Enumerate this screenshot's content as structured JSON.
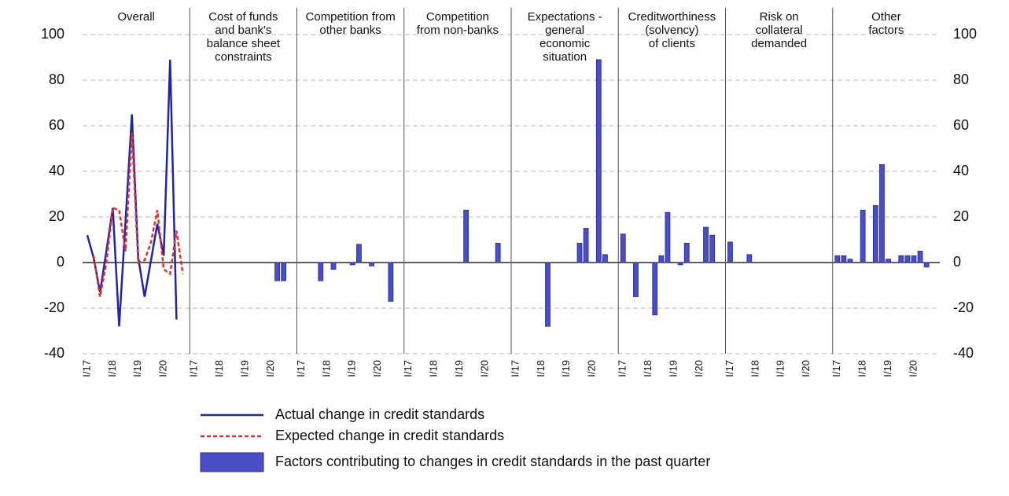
{
  "chart_data": {
    "type": "panels",
    "ylim": [
      -40,
      100
    ],
    "yticks": [
      -40,
      -20,
      0,
      20,
      40,
      60,
      80,
      100
    ],
    "grid": true,
    "categories": [
      "I/17",
      null,
      null,
      null,
      "I/18",
      null,
      null,
      null,
      "I/19",
      null,
      null,
      null,
      "I/20",
      null,
      null,
      null
    ],
    "bar_series": {
      "name": "Factors contributing to changes in credit standards in the past quarter",
      "color": "#4a4ec4"
    },
    "panels": [
      {
        "type": "line",
        "title": "Overall",
        "series": [
          {
            "name": "Actual change in credit standards",
            "color": "#2323a8",
            "values": [
              12,
              2,
              -13,
              5,
              24,
              -28,
              18,
              65,
              2,
              -15,
              1,
              17,
              3,
              89,
              -25,
              null
            ]
          },
          {
            "name": "Expected change in credit standards",
            "color": "#e0302a",
            "dash": true,
            "values": [
              null,
              3,
              -15,
              0,
              24,
              23,
              5,
              57,
              0,
              1,
              9,
              23,
              -3,
              -5,
              14,
              -5
            ]
          }
        ]
      },
      {
        "type": "bar",
        "title": "Cost of funds\nand bank's\nbalance sheet\nconstraints",
        "values": [
          null,
          null,
          null,
          null,
          null,
          null,
          null,
          null,
          null,
          null,
          null,
          null,
          null,
          -8,
          -8,
          null
        ]
      },
      {
        "type": "bar",
        "title": "Competition from\nother banks",
        "values": [
          null,
          null,
          null,
          -8,
          null,
          -3,
          null,
          null,
          -1,
          8,
          null,
          -1.5,
          null,
          null,
          -17,
          null
        ]
      },
      {
        "type": "bar",
        "title": "Competition\nfrom non-banks",
        "values": [
          null,
          null,
          null,
          null,
          null,
          null,
          null,
          null,
          null,
          23,
          null,
          null,
          null,
          null,
          8.5,
          null
        ]
      },
      {
        "type": "bar",
        "title": "Expectations -\ngeneral\neconomic\nsituation",
        "values": [
          null,
          null,
          null,
          null,
          null,
          -28,
          null,
          null,
          null,
          null,
          8.5,
          15,
          null,
          89,
          3.5,
          null
        ]
      },
      {
        "type": "bar",
        "title": "Creditworthiness\n(solvency)\nof clients",
        "values": [
          12.5,
          null,
          -15,
          null,
          null,
          -23,
          3,
          22,
          null,
          -1,
          8.5,
          null,
          null,
          15.5,
          12,
          null
        ]
      },
      {
        "type": "bar",
        "title": "Risk on\ncollateral\ndemanded",
        "values": [
          9,
          null,
          null,
          3.5,
          null,
          null,
          null,
          null,
          null,
          null,
          null,
          null,
          null,
          null,
          null,
          null
        ]
      },
      {
        "type": "bar",
        "title": "Other\nfactors",
        "values": [
          3,
          3,
          1.5,
          null,
          23,
          null,
          25,
          43,
          1.5,
          null,
          3,
          3,
          3,
          5,
          -2,
          null
        ]
      }
    ]
  }
}
